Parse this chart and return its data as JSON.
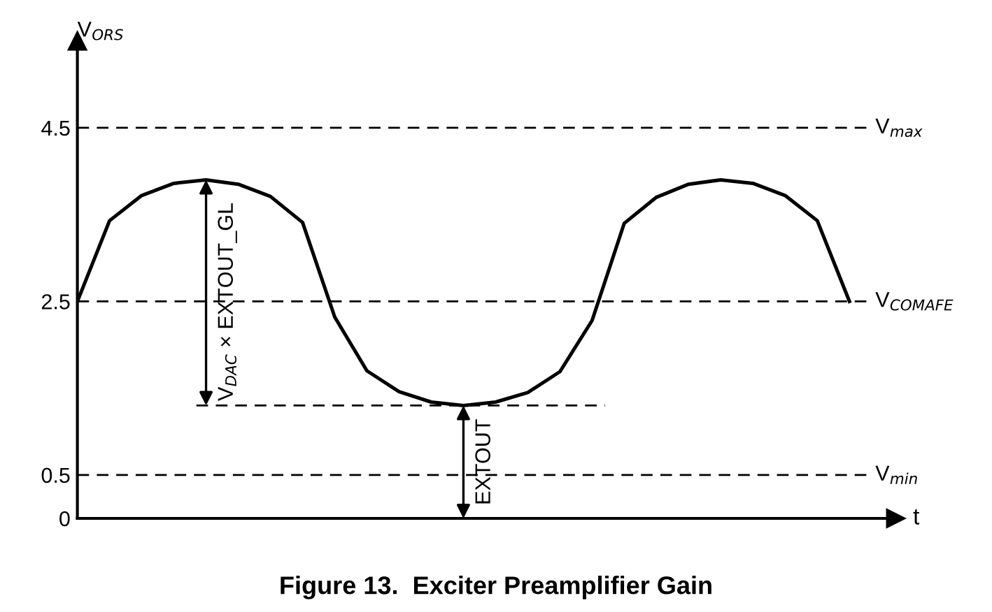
{
  "chart_data": {
    "type": "line",
    "title": "Figure 13.  Exciter Preamplifier Gain",
    "xlabel": "t",
    "ylabel": "V$_{ORS}$",
    "categories": [
      null,
      null,
      null,
      null,
      null,
      null,
      null,
      null,
      null,
      null,
      null,
      null,
      null,
      null,
      null,
      null,
      null,
      null,
      null,
      null,
      null,
      null,
      null,
      null,
      null
    ],
    "series": [
      {
        "color": "#000000",
        "values": [
          2.5,
          3.43,
          3.72,
          3.86,
          3.9,
          3.85,
          3.71,
          3.41,
          2.32,
          1.7,
          1.46,
          1.34,
          1.3,
          1.34,
          1.45,
          1.69,
          2.28,
          3.4,
          3.7,
          3.85,
          3.9,
          3.86,
          3.72,
          3.43,
          2.5
        ]
      }
    ],
    "ref_lines": [
      {
        "axis": "y",
        "value": 4.5,
        "label": "V$_{max}$",
        "line_style": "dashed",
        "color": "#000000"
      },
      {
        "axis": "y",
        "value": 2.5,
        "label": "V$_{COMAFE}$",
        "line_style": "dashed",
        "color": "#000000"
      },
      {
        "axis": "y",
        "value": 1.3,
        "line_style": "dashed",
        "color": "#000000"
      },
      {
        "axis": "y",
        "value": 0.5,
        "label": "V$_{min}$",
        "line_style": "dashed",
        "color": "#000000"
      }
    ],
    "annotations": [
      {
        "text": "V$_{DAC}$ × EXTOUT_GL",
        "y": 3.9
      },
      {
        "text": "EXTOUT",
        "y": 1.3
      }
    ],
    "ylim": [
      0,
      5.5
    ],
    "yticks": [
      0,
      0.5,
      2.5,
      4.5
    ],
    "grid": false,
    "legend": false,
    "marker": "none",
    "line_style": "solid"
  }
}
